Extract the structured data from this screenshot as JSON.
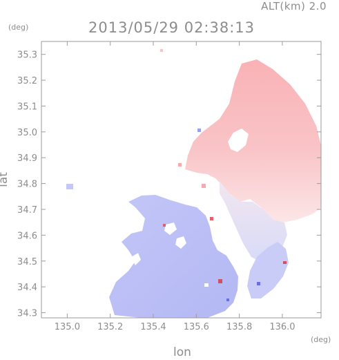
{
  "header": {
    "altitude_label": "ALT(km) 2.0",
    "timestamp": "2013/05/29 02:38:13",
    "lat_unit": "(deg)",
    "lon_unit": "(deg)"
  },
  "chart_data": {
    "type": "heatmap",
    "title": "2013/05/29 02:38:13",
    "xlabel": "lon",
    "ylabel": "lat",
    "xlim": [
      134.88,
      136.18
    ],
    "ylim": [
      34.28,
      35.35
    ],
    "xticks": [
      135.0,
      135.2,
      135.4,
      135.6,
      135.8,
      136.0
    ],
    "xtick_labels": [
      "135.0",
      "135.2",
      "135.4",
      "135.6",
      "135.8",
      "136.0"
    ],
    "yticks": [
      34.3,
      34.4,
      34.5,
      34.6,
      34.7,
      34.8,
      34.9,
      35.0,
      35.1,
      35.2,
      35.3
    ],
    "ytick_labels": [
      "34.3",
      "34.4",
      "34.5",
      "34.6",
      "34.7",
      "34.8",
      "34.9",
      "35.0",
      "35.1",
      "35.2",
      "35.3"
    ],
    "grid": false,
    "colors": {
      "positive": "#f7b5b8",
      "positive_light": "#fbe0e1",
      "negative": "#b9bdf6",
      "negative_light": "#e4e6fb",
      "axis": "#9a9a9a"
    }
  }
}
